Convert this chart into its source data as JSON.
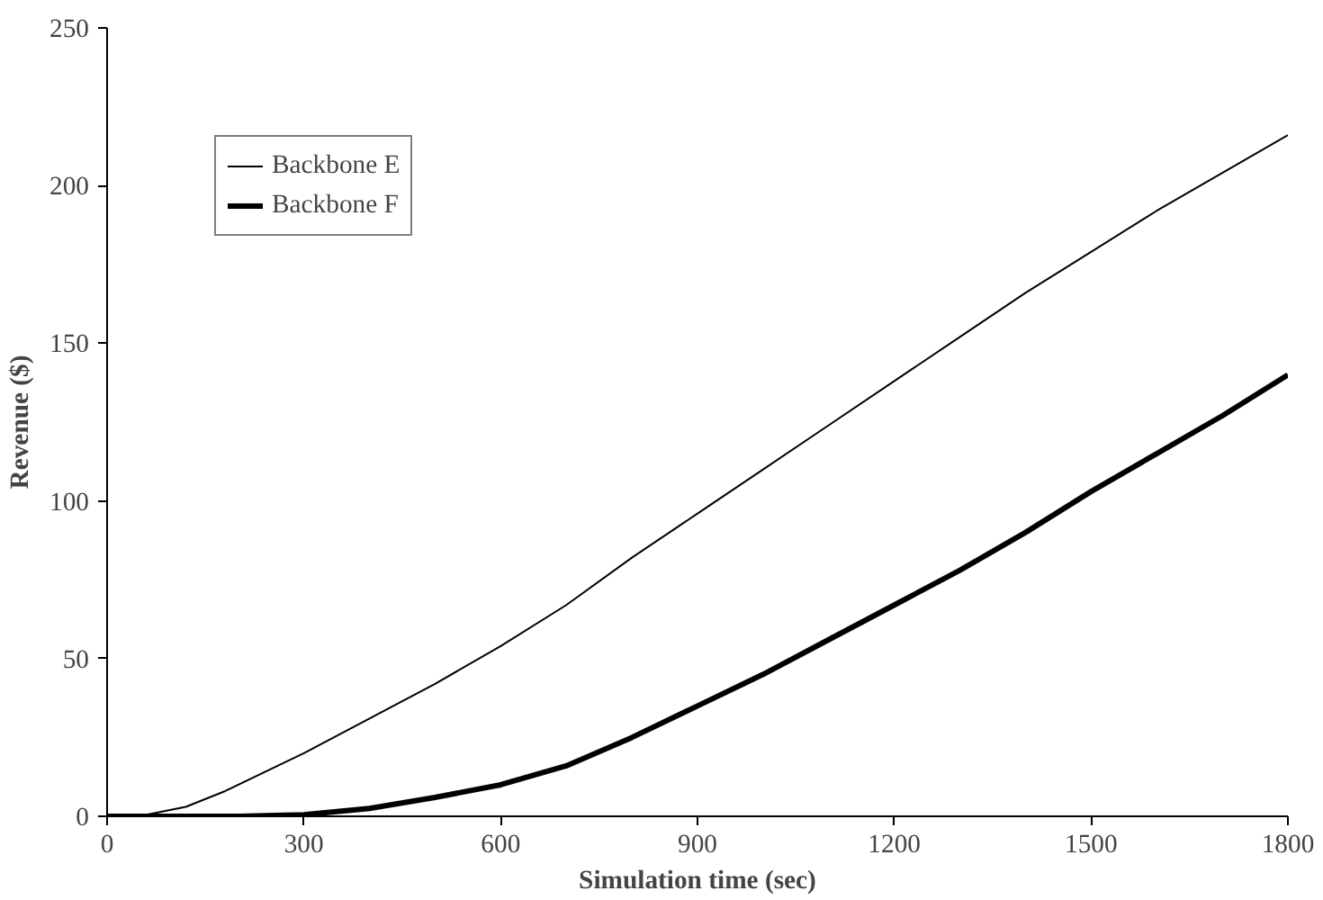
{
  "chart_data": {
    "type": "line",
    "xlabel": "Simulation time (sec)",
    "ylabel": "Revenue ($)",
    "xlim": [
      0,
      1800
    ],
    "xticks": [
      0,
      300,
      600,
      900,
      1200,
      1500,
      1800
    ],
    "ylim": [
      0,
      250
    ],
    "yticks": [
      0,
      50,
      100,
      150,
      200,
      250
    ],
    "grid": false,
    "legend": "top left",
    "marker": "none",
    "line_style": "solid",
    "series": [
      {
        "name": "Backbone E",
        "color": "#000000",
        "x": [
          0,
          60,
          120,
          180,
          240,
          300,
          400,
          500,
          600,
          700,
          800,
          900,
          1000,
          1100,
          1200,
          1300,
          1400,
          1500,
          1600,
          1700,
          1800
        ],
        "values": [
          0,
          0.5,
          3,
          8,
          14,
          20,
          31,
          42,
          54,
          67,
          82,
          96,
          110,
          124,
          138,
          152,
          166,
          179,
          192,
          204,
          216
        ]
      },
      {
        "name": "Backbone F",
        "color": "#000000",
        "x": [
          0,
          200,
          300,
          400,
          500,
          600,
          700,
          800,
          900,
          1000,
          1100,
          1200,
          1300,
          1400,
          1500,
          1600,
          1700,
          1800
        ],
        "values": [
          0,
          0,
          0.5,
          2.5,
          6,
          10,
          16,
          25,
          35,
          45,
          56,
          67,
          78,
          90,
          103,
          115,
          127,
          140
        ]
      }
    ]
  }
}
